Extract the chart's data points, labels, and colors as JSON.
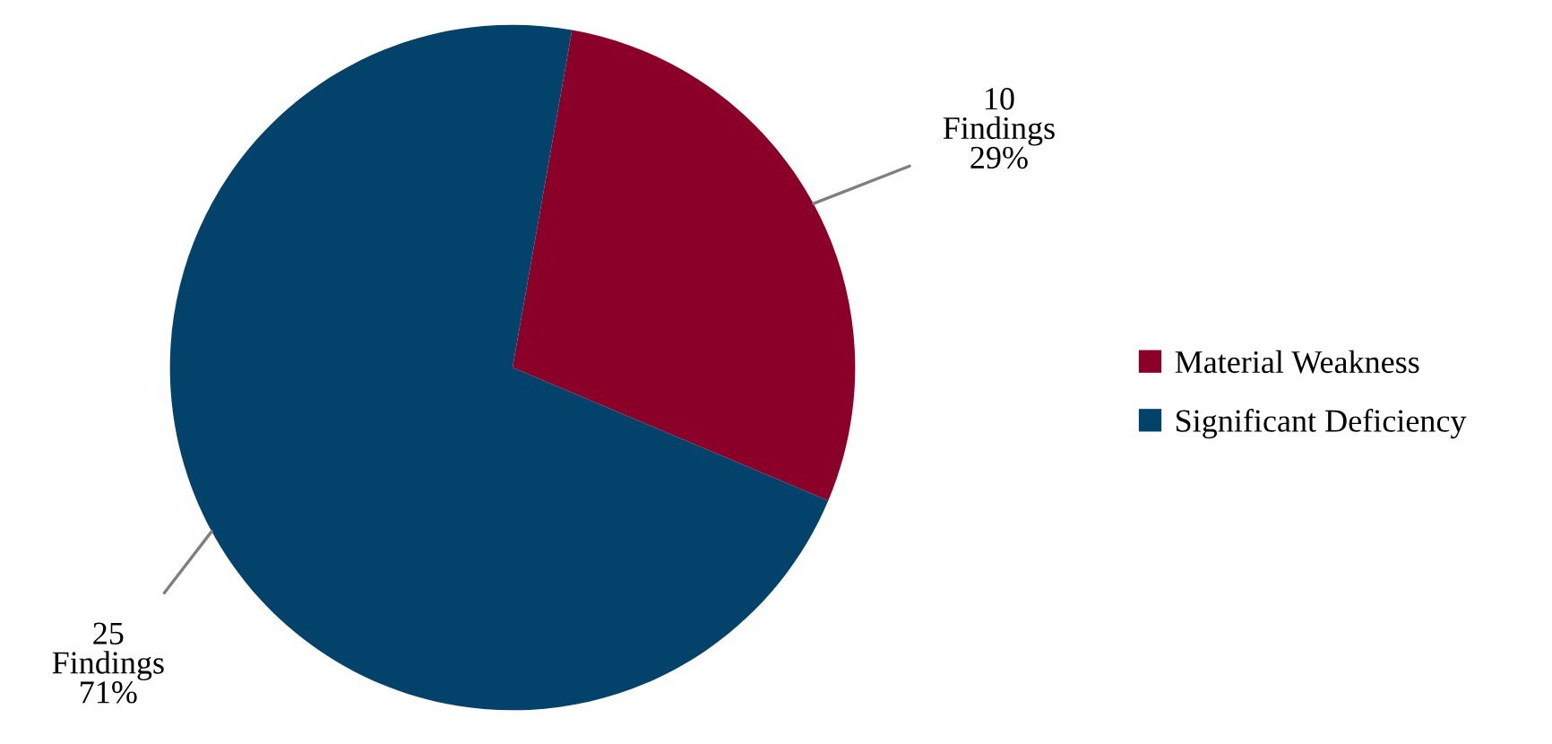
{
  "chart_data": {
    "type": "pie",
    "categories": [
      "Material Weakness",
      "Significant Deficiency"
    ],
    "values": [
      10,
      25
    ],
    "colors": [
      "#8b0029",
      "#03436b"
    ],
    "value_labels": [
      "10\nFindings\n29%",
      "25\nFindings\n71%"
    ],
    "legend": "right"
  }
}
